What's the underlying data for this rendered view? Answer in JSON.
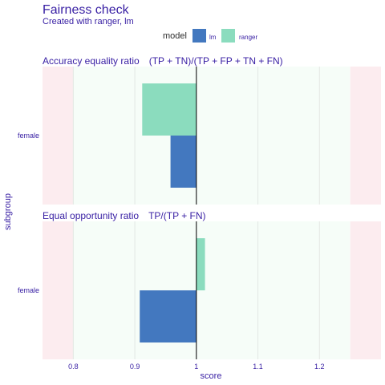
{
  "title": "Fairness check",
  "subtitle": "Created with ranger, lm",
  "legend": {
    "title": "model",
    "entries": [
      {
        "label": "lm",
        "color": "#4378bf"
      },
      {
        "label": "ranger",
        "color": "#8bdcbe"
      }
    ]
  },
  "colors": {
    "fair_zone": "#f6fdf8",
    "unfair_zone": "#fcecef",
    "grid": "#e3e8e4",
    "baseline": "#000000",
    "text": "#371ea3"
  },
  "chart_data": {
    "type": "bar",
    "orientation": "horizontal",
    "xlabel": "score",
    "ylabel": "subgroup",
    "xlim": [
      0.75,
      1.3
    ],
    "baseline": 1.0,
    "fair_range": [
      0.8,
      1.25
    ],
    "x_ticks": [
      "0.8",
      "0.9",
      "1",
      "1.1",
      "1.2"
    ],
    "x_tick_values": [
      0.8,
      0.9,
      1.0,
      1.1,
      1.2
    ],
    "grid": true,
    "legend_position": "top",
    "panels": [
      {
        "title": "Accuracy equality ratio",
        "formula": "(TP + TN)/(TP + FP + TN + FN)",
        "categories": [
          "female"
        ],
        "series": [
          {
            "name": "ranger",
            "values": [
              0.912
            ]
          },
          {
            "name": "lm",
            "values": [
              0.958
            ]
          }
        ]
      },
      {
        "title": "Equal opportunity ratio",
        "formula": "TP/(TP + FN)",
        "categories": [
          "female"
        ],
        "series": [
          {
            "name": "ranger",
            "values": [
              1.014
            ]
          },
          {
            "name": "lm",
            "values": [
              0.908
            ]
          }
        ]
      }
    ]
  }
}
